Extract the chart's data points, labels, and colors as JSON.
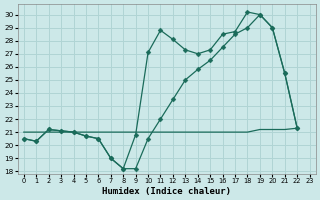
{
  "xlabel": "Humidex (Indice chaleur)",
  "xlim": [
    -0.5,
    23.5
  ],
  "ylim": [
    17.8,
    30.8
  ],
  "yticks": [
    18,
    19,
    20,
    21,
    22,
    23,
    24,
    25,
    26,
    27,
    28,
    29,
    30
  ],
  "xticks": [
    0,
    1,
    2,
    3,
    4,
    5,
    6,
    7,
    8,
    9,
    10,
    11,
    12,
    13,
    14,
    15,
    16,
    17,
    18,
    19,
    20,
    21,
    22,
    23
  ],
  "bg_color": "#cce8e8",
  "grid_color": "#b0d4d4",
  "line_color": "#1a6b5a",
  "line1_y": [
    20.5,
    20.3,
    21.2,
    21.1,
    21.0,
    20.7,
    20.5,
    19.0,
    18.2,
    20.8,
    27.1,
    28.8,
    28.1,
    27.3,
    27.0,
    27.3,
    28.5,
    28.7,
    30.2,
    30.0,
    29.0,
    25.5,
    21.3
  ],
  "line2_y": [
    20.5,
    20.3,
    21.2,
    21.1,
    21.0,
    20.7,
    20.5,
    19.0,
    18.2,
    18.2,
    20.5,
    22.0,
    23.5,
    25.0,
    25.8,
    26.5,
    27.5,
    28.5,
    29.0,
    30.0,
    29.0,
    25.5,
    21.3
  ],
  "line3_y": [
    21.0,
    21.0,
    21.0,
    21.0,
    21.0,
    21.0,
    21.0,
    21.0,
    21.0,
    21.0,
    21.0,
    21.0,
    21.0,
    21.0,
    21.0,
    21.0,
    21.0,
    21.0,
    21.0,
    21.2,
    21.2,
    21.2,
    21.3
  ],
  "lw": 0.9,
  "ms": 2.5
}
